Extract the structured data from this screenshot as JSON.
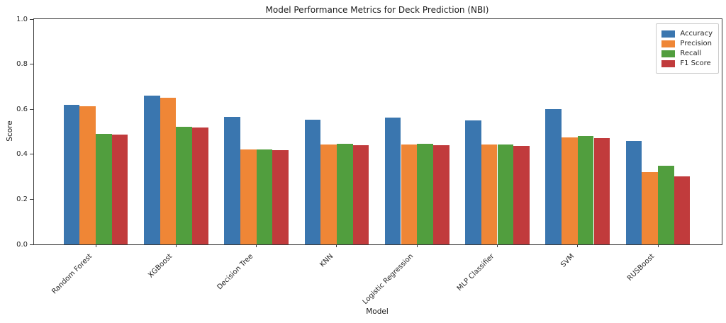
{
  "chart_data": {
    "type": "bar",
    "title": "Model Performance Metrics for Deck Prediction (NBI)",
    "xlabel": "Model",
    "ylabel": "Score",
    "ylim": [
      0.0,
      1.0
    ],
    "yticks": [
      0.0,
      0.2,
      0.4,
      0.6,
      0.8,
      1.0
    ],
    "grid": false,
    "legend_position": "upper right",
    "xtick_rotation": 45,
    "categories": [
      "Random Forest",
      "XGBoost",
      "Decision Tree",
      "KNN",
      "Logistic Regression",
      "MLP Classifier",
      "SVM",
      "RUSBoost"
    ],
    "series": [
      {
        "name": "Accuracy",
        "color": "#3A76AF",
        "values": [
          0.62,
          0.66,
          0.567,
          0.555,
          0.562,
          0.551,
          0.601,
          0.46
        ]
      },
      {
        "name": "Precision",
        "color": "#EF8636",
        "values": [
          0.612,
          0.651,
          0.42,
          0.442,
          0.443,
          0.442,
          0.476,
          0.322
        ]
      },
      {
        "name": "Recall",
        "color": "#519E3E",
        "values": [
          0.491,
          0.523,
          0.421,
          0.447,
          0.447,
          0.445,
          0.481,
          0.348
        ]
      },
      {
        "name": "F1 Score",
        "color": "#C13B3C",
        "values": [
          0.486,
          0.518,
          0.418,
          0.44,
          0.441,
          0.438,
          0.472,
          0.301
        ]
      }
    ],
    "colors": {
      "spine": "#3a3a3a",
      "text": "#262626",
      "legend_border": "#cccccc",
      "background": "#ffffff"
    }
  }
}
